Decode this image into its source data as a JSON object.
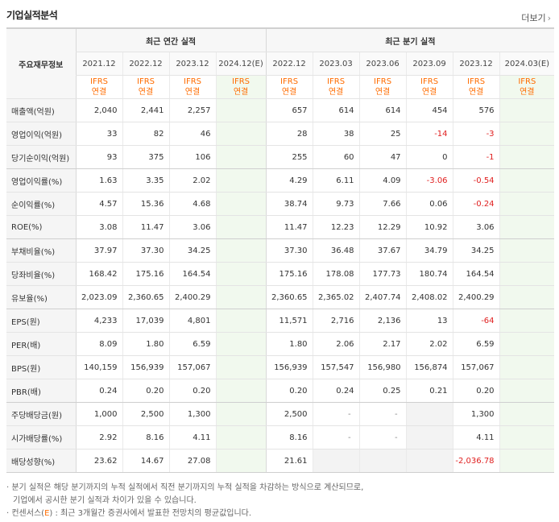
{
  "header": {
    "title": "기업실적분석",
    "more_label": "더보기",
    "more_icon": "chevron-right"
  },
  "table": {
    "row_header_label": "주요재무정보",
    "group_annual": "최근 연간 실적",
    "group_quarter": "최근 분기 실적",
    "annual_periods": [
      "2021.12",
      "2022.12",
      "2023.12",
      "2024.12(E)"
    ],
    "quarter_periods": [
      "2022.12",
      "2023.03",
      "2023.06",
      "2023.09",
      "2023.12",
      "2024.03(E)"
    ],
    "ifrs_line1": "IFRS",
    "ifrs_line2": "연결",
    "rows": [
      {
        "label": "매출액(억원)",
        "annual": [
          "2,040",
          "2,441",
          "2,257",
          ""
        ],
        "quarter": [
          "657",
          "614",
          "614",
          "454",
          "576",
          ""
        ]
      },
      {
        "label": "영업이익(억원)",
        "annual": [
          "33",
          "82",
          "46",
          ""
        ],
        "quarter": [
          "28",
          "38",
          "25",
          "-14",
          "-3",
          ""
        ]
      },
      {
        "label": "당기순이익(억원)",
        "annual": [
          "93",
          "375",
          "106",
          ""
        ],
        "quarter": [
          "255",
          "60",
          "47",
          "0",
          "-1",
          ""
        ]
      },
      {
        "label": "영업이익률(%)",
        "annual": [
          "1.63",
          "3.35",
          "2.02",
          ""
        ],
        "quarter": [
          "4.29",
          "6.11",
          "4.09",
          "-3.06",
          "-0.54",
          ""
        ]
      },
      {
        "label": "순이익률(%)",
        "annual": [
          "4.57",
          "15.36",
          "4.68",
          ""
        ],
        "quarter": [
          "38.74",
          "9.73",
          "7.66",
          "0.06",
          "-0.24",
          ""
        ]
      },
      {
        "label": "ROE(%)",
        "annual": [
          "3.08",
          "11.47",
          "3.06",
          ""
        ],
        "quarter": [
          "11.47",
          "12.23",
          "12.29",
          "10.92",
          "3.06",
          ""
        ]
      },
      {
        "label": "부채비율(%)",
        "annual": [
          "37.97",
          "37.30",
          "34.25",
          ""
        ],
        "quarter": [
          "37.30",
          "36.48",
          "37.67",
          "34.79",
          "34.25",
          ""
        ]
      },
      {
        "label": "당좌비율(%)",
        "annual": [
          "168.42",
          "175.16",
          "164.54",
          ""
        ],
        "quarter": [
          "175.16",
          "178.08",
          "177.73",
          "180.74",
          "164.54",
          ""
        ]
      },
      {
        "label": "유보율(%)",
        "annual": [
          "2,023.09",
          "2,360.65",
          "2,400.29",
          ""
        ],
        "quarter": [
          "2,360.65",
          "2,365.02",
          "2,407.74",
          "2,408.02",
          "2,400.29",
          ""
        ]
      },
      {
        "label": "EPS(원)",
        "annual": [
          "4,233",
          "17,039",
          "4,801",
          ""
        ],
        "quarter": [
          "11,571",
          "2,716",
          "2,136",
          "13",
          "-64",
          ""
        ]
      },
      {
        "label": "PER(배)",
        "annual": [
          "8.09",
          "1.80",
          "6.59",
          ""
        ],
        "quarter": [
          "1.80",
          "2.06",
          "2.17",
          "2.02",
          "6.59",
          ""
        ]
      },
      {
        "label": "BPS(원)",
        "annual": [
          "140,159",
          "156,939",
          "157,067",
          ""
        ],
        "quarter": [
          "156,939",
          "157,547",
          "156,980",
          "156,874",
          "157,067",
          ""
        ]
      },
      {
        "label": "PBR(배)",
        "annual": [
          "0.24",
          "0.20",
          "0.20",
          ""
        ],
        "quarter": [
          "0.20",
          "0.24",
          "0.25",
          "0.21",
          "0.20",
          ""
        ]
      },
      {
        "label": "주당배당금(원)",
        "annual": [
          "1,000",
          "2,500",
          "1,300",
          ""
        ],
        "quarter": [
          "2,500",
          "-",
          "-",
          "",
          "1,300",
          ""
        ]
      },
      {
        "label": "시가배당률(%)",
        "annual": [
          "2.92",
          "8.16",
          "4.11",
          ""
        ],
        "quarter": [
          "8.16",
          "-",
          "-",
          "",
          "4.11",
          ""
        ]
      },
      {
        "label": "배당성향(%)",
        "annual": [
          "23.62",
          "14.67",
          "27.08",
          ""
        ],
        "quarter": [
          "21.61",
          "",
          "",
          "",
          "-2,036.78",
          ""
        ]
      }
    ]
  },
  "notes": {
    "line1": "· 분기 실적은 해당 분기까지의 누적 실적에서 직전 분기까지의 누적 실적을 차감하는 방식으로 계산되므로,",
    "line2": "기업에서 공시한 분기 실적과 차이가 있을 수 있습니다.",
    "line3_prefix": "· 컨센서스(",
    "line3_e": "E",
    "line3_suffix": ") : 최근 3개월간 증권사에서 발표한 전망치의 평균값입니다."
  },
  "colors": {
    "ifrs_orange": "#ff6c00",
    "negative_red": "#e02020",
    "estimate_bg": "#f1f9ee"
  }
}
